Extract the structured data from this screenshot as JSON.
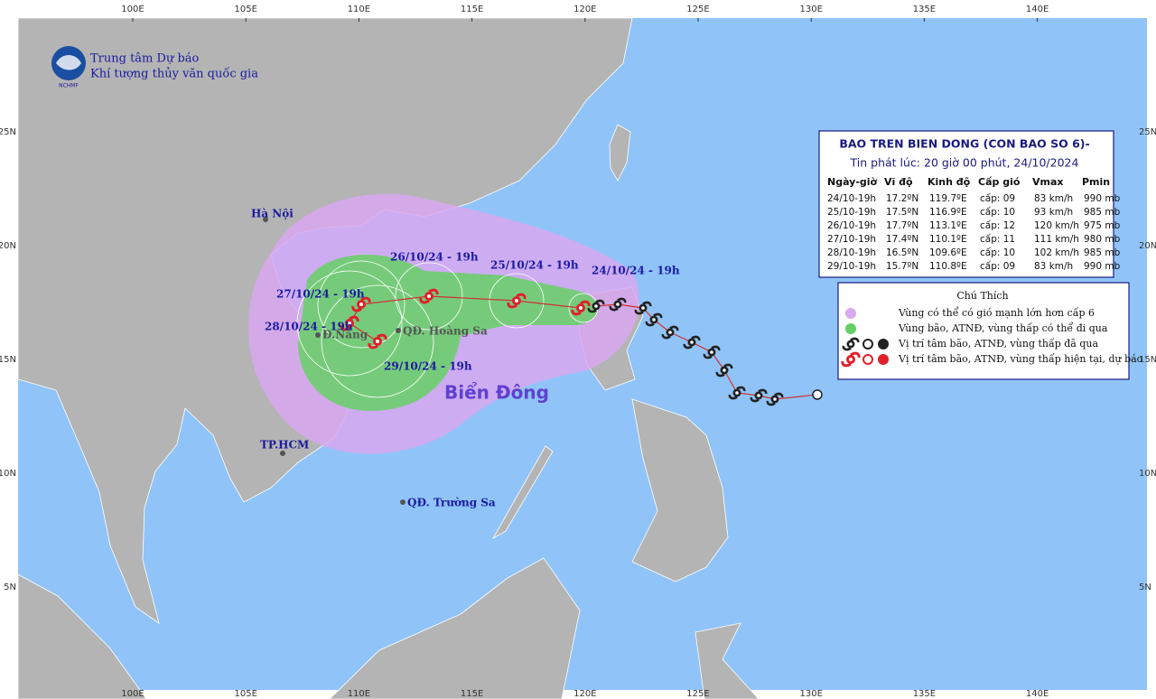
{
  "org": {
    "line1": "Trung tâm Dự báo",
    "line2": "Khí tượng thủy văn quốc gia",
    "logo": "NCHMF"
  },
  "axes": {
    "lon": [
      "100E",
      "105E",
      "110E",
      "115E",
      "120E",
      "125E",
      "130E",
      "135E",
      "140E"
    ],
    "lat": [
      "25N",
      "20N",
      "15N",
      "10N",
      "5N"
    ]
  },
  "places": {
    "hanoi": "Hà Nội",
    "danang": "Đ.Nẵng",
    "hoangsa": "QĐ. Hoàng Sa",
    "hcm": "TP.HCM",
    "truongsa": "QĐ. Trường Sa",
    "sea": "Biển Đông"
  },
  "forecast_labels": [
    "24/10/24 - 19h",
    "25/10/24 - 19h",
    "26/10/24 - 19h",
    "27/10/24 - 19h",
    "28/10/24 - 19h",
    "29/10/24 - 19h"
  ],
  "table": {
    "title": "BAO TREN BIEN DONG (CON BAO SO 6)-",
    "issued": "Tin phát lúc: 20 giờ 00 phút, 24/10/2024",
    "header": [
      "Ngày-giờ",
      "Vĩ độ",
      "Kinh độ",
      "Cấp gió",
      "Vmax",
      "Pmin"
    ],
    "rows": [
      [
        "24/10-19h",
        "17.2ºN",
        "119.7ºE",
        "cấp: 09",
        "83 km/h",
        "990 mb"
      ],
      [
        "25/10-19h",
        "17.5ºN",
        "116.9ºE",
        "cấp: 10",
        "93 km/h",
        "985 mb"
      ],
      [
        "26/10-19h",
        "17.7ºN",
        "113.1ºE",
        "cấp: 12",
        "120 km/h",
        "975 mb"
      ],
      [
        "27/10-19h",
        "17.4ºN",
        "110.1ºE",
        "cấp: 11",
        "111 km/h",
        "980 mb"
      ],
      [
        "28/10-19h",
        "16.5ºN",
        "109.6ºE",
        "cấp: 10",
        "102 km/h",
        "985 mb"
      ],
      [
        "29/10-19h",
        "15.7ºN",
        "110.8ºE",
        "cấp: 09",
        "83 km/h",
        "990 mb"
      ]
    ]
  },
  "legend": {
    "title": "Chú Thích",
    "items": [
      "Vùng có thể có gió mạnh lớn hơn cấp 6",
      "Vùng bão, ATNĐ, vùng thấp có thể đi qua",
      "Vị trí tâm bão, ATNĐ, vùng thấp đã qua",
      "Vị trí tâm bão, ATNĐ, vùng thấp hiện tại, dự báo"
    ]
  }
}
